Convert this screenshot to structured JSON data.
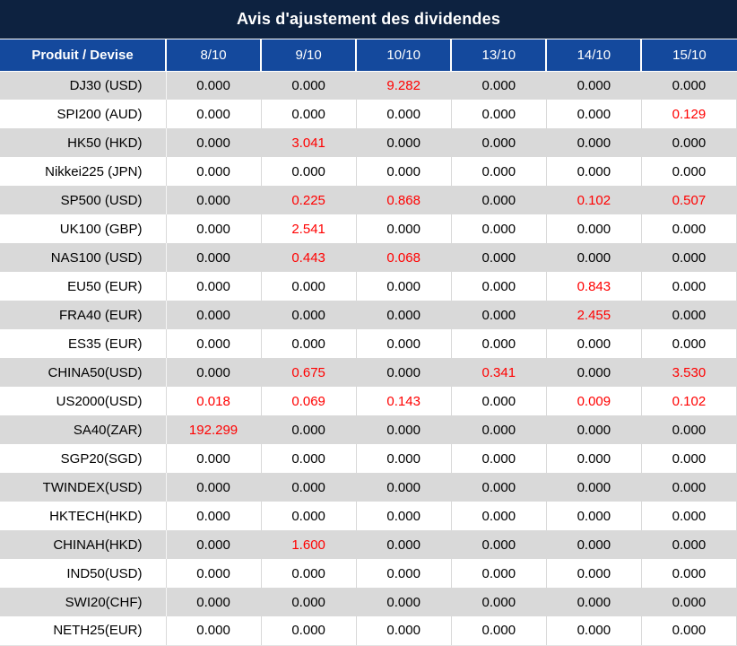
{
  "colors": {
    "navy": "#0d2240",
    "blue": "#14499d",
    "stripe": "#d9d9d9",
    "red": "#ff0000",
    "text": "#000000",
    "header_text": "#ffffff"
  },
  "chart_data": {
    "type": "table",
    "title": "Avis d'ajustement des dividendes",
    "row_header_label": "Produit / Devise",
    "columns": [
      "8/10",
      "9/10",
      "10/10",
      "13/10",
      "14/10",
      "15/10"
    ],
    "highlight_rule": "non-zero values rendered in red",
    "rows": [
      {
        "product": "DJ30 (USD)",
        "values": [
          "0.000",
          "0.000",
          "9.282",
          "0.000",
          "0.000",
          "0.000"
        ]
      },
      {
        "product": "SPI200 (AUD)",
        "values": [
          "0.000",
          "0.000",
          "0.000",
          "0.000",
          "0.000",
          "0.129"
        ]
      },
      {
        "product": "HK50 (HKD)",
        "values": [
          "0.000",
          "3.041",
          "0.000",
          "0.000",
          "0.000",
          "0.000"
        ]
      },
      {
        "product": "Nikkei225 (JPN)",
        "values": [
          "0.000",
          "0.000",
          "0.000",
          "0.000",
          "0.000",
          "0.000"
        ]
      },
      {
        "product": "SP500 (USD)",
        "values": [
          "0.000",
          "0.225",
          "0.868",
          "0.000",
          "0.102",
          "0.507"
        ]
      },
      {
        "product": "UK100 (GBP)",
        "values": [
          "0.000",
          "2.541",
          "0.000",
          "0.000",
          "0.000",
          "0.000"
        ]
      },
      {
        "product": "NAS100 (USD)",
        "values": [
          "0.000",
          "0.443",
          "0.068",
          "0.000",
          "0.000",
          "0.000"
        ]
      },
      {
        "product": "EU50 (EUR)",
        "values": [
          "0.000",
          "0.000",
          "0.000",
          "0.000",
          "0.843",
          "0.000"
        ]
      },
      {
        "product": "FRA40 (EUR)",
        "values": [
          "0.000",
          "0.000",
          "0.000",
          "0.000",
          "2.455",
          "0.000"
        ]
      },
      {
        "product": "ES35 (EUR)",
        "values": [
          "0.000",
          "0.000",
          "0.000",
          "0.000",
          "0.000",
          "0.000"
        ]
      },
      {
        "product": "CHINA50(USD)",
        "values": [
          "0.000",
          "0.675",
          "0.000",
          "0.341",
          "0.000",
          "3.530"
        ]
      },
      {
        "product": "US2000(USD)",
        "values": [
          "0.018",
          "0.069",
          "0.143",
          "0.000",
          "0.009",
          "0.102"
        ]
      },
      {
        "product": "SA40(ZAR)",
        "values": [
          "192.299",
          "0.000",
          "0.000",
          "0.000",
          "0.000",
          "0.000"
        ]
      },
      {
        "product": "SGP20(SGD)",
        "values": [
          "0.000",
          "0.000",
          "0.000",
          "0.000",
          "0.000",
          "0.000"
        ]
      },
      {
        "product": "TWINDEX(USD)",
        "values": [
          "0.000",
          "0.000",
          "0.000",
          "0.000",
          "0.000",
          "0.000"
        ]
      },
      {
        "product": "HKTECH(HKD)",
        "values": [
          "0.000",
          "0.000",
          "0.000",
          "0.000",
          "0.000",
          "0.000"
        ]
      },
      {
        "product": "CHINAH(HKD)",
        "values": [
          "0.000",
          "1.600",
          "0.000",
          "0.000",
          "0.000",
          "0.000"
        ]
      },
      {
        "product": "IND50(USD)",
        "values": [
          "0.000",
          "0.000",
          "0.000",
          "0.000",
          "0.000",
          "0.000"
        ]
      },
      {
        "product": "SWI20(CHF)",
        "values": [
          "0.000",
          "0.000",
          "0.000",
          "0.000",
          "0.000",
          "0.000"
        ]
      },
      {
        "product": "NETH25(EUR)",
        "values": [
          "0.000",
          "0.000",
          "0.000",
          "0.000",
          "0.000",
          "0.000"
        ]
      }
    ]
  }
}
